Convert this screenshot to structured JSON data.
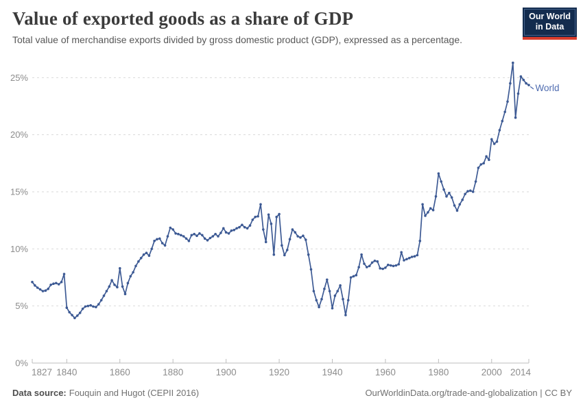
{
  "header": {
    "title": "Value of exported goods as a share of GDP",
    "subtitle": "Total value of merchandise exports divided by gross domestic product (GDP), expressed as a percentage.",
    "logo": {
      "line1": "Our World",
      "line2": "in Data"
    }
  },
  "footer": {
    "data_source_label": "Data source:",
    "data_source_value": "Fouquin and Hugot (CEPII 2016)",
    "credits": "OurWorldinData.org/trade-and-globalization | CC BY"
  },
  "chart_data": {
    "type": "line",
    "title": "Value of exported goods as a share of GDP",
    "xlabel": "",
    "ylabel": "",
    "xlim": [
      1827,
      2014
    ],
    "ylim": [
      0,
      26.5
    ],
    "grid": "horizontal-dashed",
    "legend_position": "end-of-line-label",
    "colors": {
      "line": "#3d5a94",
      "entity_label": "#4f6cb0",
      "gridline": "#dadada",
      "axis": "#bdbdbd",
      "tick_label": "#8c8c8c"
    },
    "yticks": [
      {
        "value": 0,
        "label": "0%"
      },
      {
        "value": 5,
        "label": "5%"
      },
      {
        "value": 10,
        "label": "10%"
      },
      {
        "value": 15,
        "label": "15%"
      },
      {
        "value": 20,
        "label": "20%"
      },
      {
        "value": 25,
        "label": "25%"
      }
    ],
    "xticks": [
      {
        "year": 1827,
        "label": "1827",
        "dx": 14
      },
      {
        "year": 1840,
        "label": "1840",
        "dx": 0
      },
      {
        "year": 1860,
        "label": "1860",
        "dx": 0
      },
      {
        "year": 1880,
        "label": "1880",
        "dx": 0
      },
      {
        "year": 1900,
        "label": "1900",
        "dx": 0
      },
      {
        "year": 1920,
        "label": "1920",
        "dx": 0
      },
      {
        "year": 1940,
        "label": "1940",
        "dx": 0
      },
      {
        "year": 1960,
        "label": "1960",
        "dx": 0
      },
      {
        "year": 1980,
        "label": "1980",
        "dx": 0
      },
      {
        "year": 2000,
        "label": "2000",
        "dx": 0
      },
      {
        "year": 2014,
        "label": "2014",
        "dx": -12
      }
    ],
    "series": [
      {
        "name": "World",
        "start_year": 1827,
        "end_year": 2014,
        "values": [
          7.1,
          6.8,
          6.6,
          6.45,
          6.3,
          6.35,
          6.5,
          6.85,
          6.95,
          7.0,
          6.9,
          7.1,
          7.8,
          4.85,
          4.45,
          4.2,
          3.95,
          4.15,
          4.4,
          4.75,
          4.95,
          5.0,
          5.05,
          4.95,
          4.9,
          5.15,
          5.5,
          5.9,
          6.3,
          6.7,
          7.25,
          6.85,
          6.65,
          8.3,
          6.7,
          6.05,
          7.0,
          7.6,
          7.95,
          8.5,
          8.9,
          9.2,
          9.5,
          9.65,
          9.4,
          10.0,
          10.7,
          10.85,
          10.9,
          10.5,
          10.3,
          11.1,
          11.85,
          11.7,
          11.35,
          11.3,
          11.2,
          11.1,
          10.9,
          10.7,
          11.2,
          11.3,
          11.15,
          11.35,
          11.2,
          10.9,
          10.75,
          10.95,
          11.1,
          11.3,
          11.1,
          11.4,
          11.8,
          11.45,
          11.35,
          11.6,
          11.65,
          11.8,
          11.9,
          12.1,
          11.9,
          11.8,
          12.05,
          12.55,
          12.8,
          12.85,
          13.9,
          11.7,
          10.6,
          13.0,
          12.2,
          9.5,
          12.8,
          13.05,
          10.3,
          9.45,
          9.9,
          10.85,
          11.7,
          11.45,
          11.1,
          11.0,
          11.15,
          10.8,
          9.5,
          8.2,
          6.3,
          5.5,
          4.9,
          5.6,
          6.5,
          7.3,
          6.3,
          4.8,
          5.9,
          6.3,
          6.8,
          5.6,
          4.2,
          5.5,
          7.5,
          7.6,
          7.7,
          8.4,
          9.5,
          8.7,
          8.4,
          8.5,
          8.8,
          8.95,
          8.9,
          8.3,
          8.25,
          8.35,
          8.6,
          8.55,
          8.5,
          8.55,
          8.65,
          9.7,
          9.0,
          9.1,
          9.2,
          9.3,
          9.35,
          9.45,
          10.7,
          13.9,
          12.9,
          13.2,
          13.55,
          13.4,
          14.6,
          16.6,
          15.9,
          15.2,
          14.6,
          14.9,
          14.5,
          13.8,
          13.35,
          13.9,
          14.3,
          14.8,
          15.05,
          15.1,
          15.0,
          15.9,
          17.1,
          17.4,
          17.5,
          18.1,
          17.8,
          19.6,
          19.2,
          19.4,
          20.4,
          21.2,
          22.0,
          22.9,
          24.5,
          26.3,
          21.5,
          23.6,
          25.1,
          24.8,
          24.5,
          24.35
        ]
      }
    ]
  }
}
